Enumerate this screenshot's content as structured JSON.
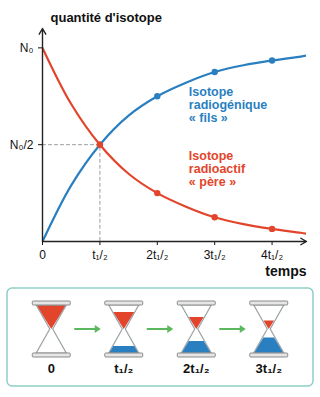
{
  "chart_data": {
    "type": "line",
    "y_label": "quantité d'isotope",
    "x_label": "temps",
    "x": [
      0,
      0.5,
      1,
      1.5,
      2,
      2.5,
      3,
      3.5,
      4,
      4.5,
      4.6
    ],
    "series": [
      {
        "name": "Isotope\nradiogénique\n« fils »",
        "color": "#2a7fc1",
        "marker": "circle",
        "values": [
          0,
          0.29,
          0.5,
          0.65,
          0.75,
          0.82,
          0.875,
          0.91,
          0.935,
          0.955,
          0.96
        ]
      },
      {
        "name": "Isotope\nradioactif\n« père »",
        "color": "#e2452b",
        "marker": "circle",
        "values": [
          1,
          0.71,
          0.5,
          0.35,
          0.25,
          0.18,
          0.125,
          0.09,
          0.065,
          0.045,
          0.04
        ]
      }
    ],
    "marker_x": [
      1,
      2,
      3,
      4
    ],
    "xlim": [
      0,
      4.6
    ],
    "ylim": [
      0,
      1.1
    ],
    "xticks": [
      0,
      {
        "value": 1,
        "label": "t₁/₂"
      },
      {
        "value": 2,
        "label": "2t₁/₂"
      },
      {
        "value": 3,
        "label": "3t₁/₂"
      },
      {
        "value": 4,
        "label": "4t₁/₂"
      }
    ],
    "yticks": [
      {
        "value": 0.5,
        "label": "N₀/2"
      },
      {
        "value": 1,
        "label": "N₀"
      }
    ],
    "grid": false
  },
  "diagram": {
    "labels": [
      "0",
      "t₁/₂",
      "2t₁/₂",
      "3t₁/₂"
    ],
    "remaining_fraction": [
      1,
      0.5,
      0.25,
      0.125
    ]
  }
}
